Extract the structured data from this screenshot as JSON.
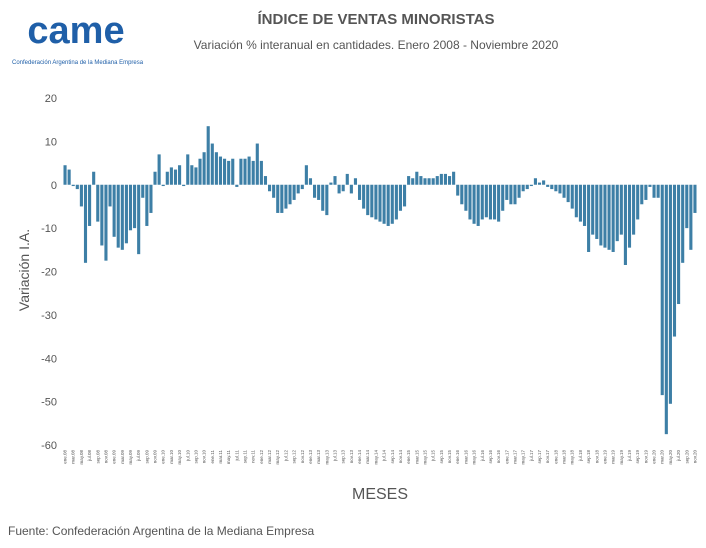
{
  "header": {
    "logo": "came",
    "logo_subtitle": "Confederación Argentina de la Mediana Empresa"
  },
  "chart_data": {
    "type": "bar",
    "title": "ÍNDICE DE VENTAS MINORISTAS",
    "subtitle": "Variación % interanual en cantidades. Enero 2008 - Noviembre 2020",
    "y_label": "Variación I.A.",
    "x_label": "MESES",
    "color": "#3d7fa6",
    "grid": false,
    "ylim": [
      -60,
      20
    ],
    "yticks": [
      -60,
      -50,
      -40,
      -30,
      -20,
      -10,
      0,
      10,
      20
    ],
    "categories": [
      "ene.08",
      null,
      "mar.08",
      null,
      "may.08",
      null,
      "jul.08",
      null,
      "sep.08",
      null,
      "nov.08",
      null,
      "ene.09",
      null,
      "mar.09",
      null,
      "may.09",
      null,
      "jul.09",
      null,
      "sep.09",
      null,
      "nov.09",
      null,
      "ene.10",
      null,
      "mar.10",
      null,
      "may.10",
      null,
      "jul.10",
      null,
      "sep.10",
      null,
      "nov.10",
      null,
      "ene.11",
      null,
      "mar.11",
      null,
      "may.11",
      null,
      "jul.11",
      null,
      "sep.11",
      null,
      "nov.11",
      null,
      "ene.12",
      null,
      "mar.12",
      null,
      "may.12",
      null,
      "jul.12",
      null,
      "sep.12",
      null,
      "nov.12",
      null,
      "ene.13",
      null,
      "mar.13",
      null,
      "may.13",
      null,
      "jul.13",
      null,
      "sep.13",
      null,
      "nov.13",
      null,
      "ene.14",
      null,
      "mar.14",
      null,
      "may.14",
      null,
      "jul.14",
      null,
      "sep.14",
      null,
      "nov.14",
      null,
      "ene.15",
      null,
      "mar.15",
      null,
      "may.15",
      null,
      "jul.15",
      null,
      "sep.15",
      null,
      "nov.15",
      null,
      "ene.16",
      null,
      "mar.16",
      null,
      "may.16",
      null,
      "jul.16",
      null,
      "sep.16",
      null,
      "nov.16",
      null,
      "ene.17",
      null,
      "mar.17",
      null,
      "may.17",
      null,
      "jul.17",
      null,
      "sep.17",
      null,
      "nov.17",
      null,
      "ene.18",
      null,
      "mar.18",
      null,
      "may.18",
      null,
      "jul.18",
      null,
      "sep.18",
      null,
      "nov.18",
      null,
      "ene.19",
      null,
      "mar.19",
      null,
      "may.19",
      null,
      "jul.19",
      null,
      "sep.19",
      null,
      "nov.19",
      null,
      "ene.20",
      null,
      "mar.20",
      null,
      "may.20",
      null,
      "jul.20",
      null,
      "sep.20",
      null,
      "nov.20"
    ],
    "values": [
      4.5,
      3.5,
      -0.3,
      -1,
      -5,
      -18,
      -9.5,
      3,
      -8.5,
      -14,
      -17.5,
      -5,
      -12,
      -14.5,
      -15,
      -13.5,
      -10.5,
      -10,
      -16,
      -3,
      -9.5,
      -6.5,
      3,
      7,
      -0.3,
      3,
      4,
      3.5,
      4.5,
      -0.3,
      7,
      4.5,
      4,
      6,
      7.5,
      13.5,
      9.5,
      7.5,
      6.5,
      6,
      5.5,
      6,
      -0.5,
      6,
      6,
      6.5,
      5.5,
      9.5,
      5.5,
      2,
      -1.5,
      -3,
      -6.5,
      -6.5,
      -5.5,
      -4.5,
      -3.5,
      -2,
      -1,
      4.5,
      1.5,
      -3,
      -3.5,
      -6,
      -7,
      0.5,
      2,
      -2,
      -1.5,
      2.5,
      -2,
      1.5,
      -3.5,
      -5.5,
      -7,
      -7.5,
      -8,
      -8.5,
      -9,
      -9.5,
      -9,
      -8,
      -6,
      -5,
      2,
      1.5,
      3,
      2,
      1.5,
      1.5,
      1.5,
      2,
      2.5,
      2.5,
      2,
      3,
      -2.5,
      -4.5,
      -6,
      -8,
      -9,
      -9.5,
      -8,
      -7.5,
      -8,
      -8,
      -8.5,
      -6,
      -3.5,
      -4.5,
      -4.5,
      -3,
      -1.5,
      -1,
      -0.3,
      1.5,
      0.5,
      1,
      -0.5,
      -1,
      -1.5,
      -2,
      -3,
      -4,
      -5.5,
      -7.5,
      -8.5,
      -9.5,
      -15.5,
      -11.5,
      -12.5,
      -14,
      -14.5,
      -15,
      -15.5,
      -13,
      -11.5,
      -18.5,
      -14.5,
      -11.5,
      -8,
      -4.5,
      -3.5,
      -0.5,
      -3,
      -3,
      -48.5,
      -57.5,
      -50.5,
      -35,
      -27.5,
      -18,
      -10,
      -15,
      -6.5
    ]
  },
  "footer": {
    "source": "Fuente: Confederación Argentina de la Mediana Empresa"
  }
}
